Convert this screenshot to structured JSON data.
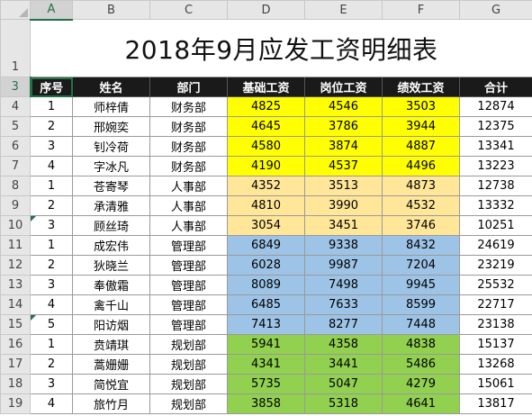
{
  "columns": [
    "A",
    "B",
    "C",
    "D",
    "E",
    "F",
    "G"
  ],
  "title_row_number": "1",
  "title": "2018年9月应发工资明细表",
  "header_row_number": "3",
  "headers": [
    "序号",
    "姓名",
    "部门",
    "基础工资",
    "岗位工资",
    "绩效工资",
    "合计"
  ],
  "rows": [
    {
      "row": "4",
      "seq": "1",
      "name": "师梓倩",
      "dept": "财务部",
      "base": "4825",
      "post": "4546",
      "perf": "3503",
      "total": "12874"
    },
    {
      "row": "5",
      "seq": "2",
      "name": "邢婉奕",
      "dept": "财务部",
      "base": "4645",
      "post": "3786",
      "perf": "3944",
      "total": "12375"
    },
    {
      "row": "6",
      "seq": "3",
      "name": "钊冷荷",
      "dept": "财务部",
      "base": "4580",
      "post": "3874",
      "perf": "4887",
      "total": "13341"
    },
    {
      "row": "7",
      "seq": "4",
      "name": "字冰凡",
      "dept": "财务部",
      "base": "4190",
      "post": "4537",
      "perf": "4496",
      "total": "13223"
    },
    {
      "row": "8",
      "seq": "1",
      "name": "苍寄琴",
      "dept": "人事部",
      "base": "4352",
      "post": "3513",
      "perf": "4873",
      "total": "12738"
    },
    {
      "row": "9",
      "seq": "2",
      "name": "承清雅",
      "dept": "人事部",
      "base": "4810",
      "post": "3990",
      "perf": "4532",
      "total": "13332"
    },
    {
      "row": "10",
      "seq": "3",
      "name": "顾丝琦",
      "dept": "人事部",
      "base": "3054",
      "post": "3451",
      "perf": "3746",
      "total": "10251"
    },
    {
      "row": "11",
      "seq": "1",
      "name": "成宏伟",
      "dept": "管理部",
      "base": "6849",
      "post": "9338",
      "perf": "8432",
      "total": "24619"
    },
    {
      "row": "12",
      "seq": "2",
      "name": "狄晓兰",
      "dept": "管理部",
      "base": "6028",
      "post": "9987",
      "perf": "7204",
      "total": "23219"
    },
    {
      "row": "13",
      "seq": "3",
      "name": "奉傲霜",
      "dept": "管理部",
      "base": "8089",
      "post": "7498",
      "perf": "9945",
      "total": "25532"
    },
    {
      "row": "14",
      "seq": "4",
      "name": "禽千山",
      "dept": "管理部",
      "base": "6485",
      "post": "7633",
      "perf": "8599",
      "total": "22717"
    },
    {
      "row": "15",
      "seq": "5",
      "name": "阳访烟",
      "dept": "管理部",
      "base": "7413",
      "post": "8277",
      "perf": "7448",
      "total": "23138"
    },
    {
      "row": "16",
      "seq": "1",
      "name": "贲靖琪",
      "dept": "规划部",
      "base": "5941",
      "post": "4358",
      "perf": "4838",
      "total": "15137"
    },
    {
      "row": "17",
      "seq": "2",
      "name": "蒿姗姗",
      "dept": "规划部",
      "base": "4341",
      "post": "3441",
      "perf": "5486",
      "total": "13268"
    },
    {
      "row": "18",
      "seq": "3",
      "name": "简悦宜",
      "dept": "规划部",
      "base": "5735",
      "post": "5047",
      "perf": "4279",
      "total": "15061"
    },
    {
      "row": "19",
      "seq": "4",
      "name": "旅竹月",
      "dept": "规划部",
      "base": "3858",
      "post": "5318",
      "perf": "4641",
      "total": "13817"
    }
  ],
  "colors": {
    "财务部": "#ffff00",
    "人事部": "#ffe699",
    "管理部": "#9dc3e6",
    "规划部": "#92d050",
    "header_bg": "#1a1a1a",
    "selection": "#217346"
  }
}
